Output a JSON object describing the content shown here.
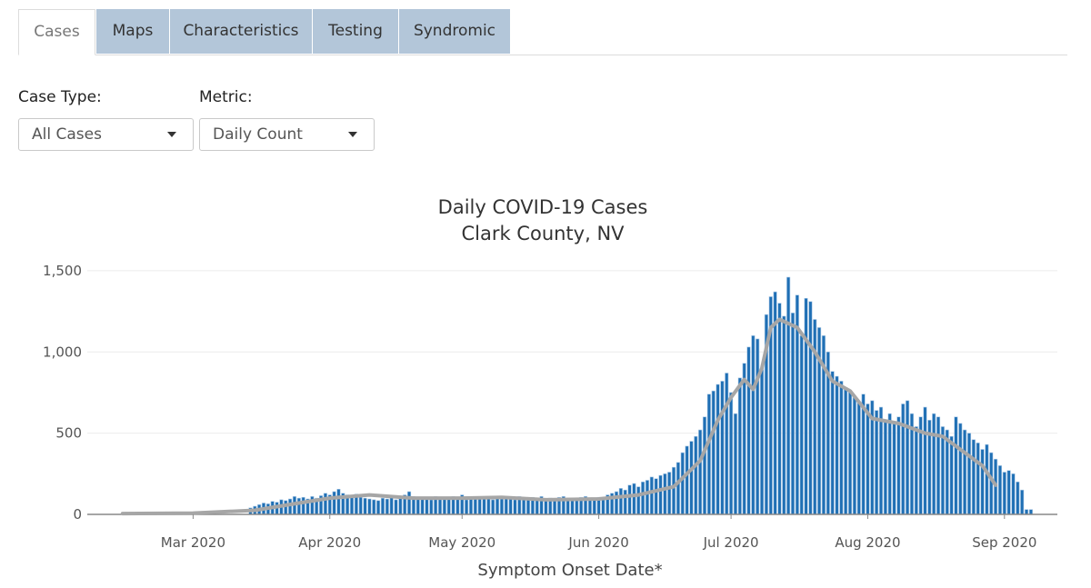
{
  "tabs": [
    {
      "label": "Cases",
      "active": true
    },
    {
      "label": "Maps",
      "active": false
    },
    {
      "label": "Characteristics",
      "active": false
    },
    {
      "label": "Testing",
      "active": false
    },
    {
      "label": "Syndromic",
      "active": false
    }
  ],
  "controls": {
    "case_type": {
      "label": "Case Type:",
      "value": "All Cases"
    },
    "metric": {
      "label": "Metric:",
      "value": "Daily Count"
    }
  },
  "colors": {
    "bar": "#1f6fb4",
    "bar_edge": "#a9c8e6",
    "moving_average": "#a6a6a6",
    "tab_inactive": "#b3c6d9"
  },
  "chart_data": {
    "type": "bar",
    "title": "Daily COVID-19 Cases",
    "subtitle": "Clark County, NV",
    "xlabel": "Symptom Onset Date*",
    "ylabel": "",
    "ylim": [
      0,
      1600
    ],
    "yticks": [
      0,
      500,
      1000,
      1500
    ],
    "ytick_labels": [
      "0",
      "500",
      "1,000",
      "1,500"
    ],
    "xticks": [
      "2020-03-01",
      "2020-04-01",
      "2020-05-01",
      "2020-06-01",
      "2020-07-01",
      "2020-08-01",
      "2020-09-01"
    ],
    "xtick_labels": [
      "Mar 2020",
      "Apr 2020",
      "May 2020",
      "Jun 2020",
      "Jul 2020",
      "Aug 2020",
      "Sep 2020"
    ],
    "xlim": [
      "2020-02-06",
      "2020-09-13"
    ],
    "grid": true,
    "series": [
      {
        "kind": "bar",
        "start_date": "2020-03-14",
        "values": [
          40,
          50,
          60,
          70,
          65,
          80,
          75,
          90,
          85,
          95,
          110,
          100,
          105,
          95,
          110,
          100,
          115,
          130,
          120,
          140,
          155,
          130,
          120,
          110,
          125,
          105,
          100,
          95,
          90,
          85,
          100,
          95,
          110,
          90,
          100,
          120,
          140,
          110,
          100,
          95,
          105,
          90,
          110,
          100,
          95,
          105,
          110,
          100,
          120,
          90,
          110,
          100,
          95,
          105,
          110,
          90,
          100,
          95,
          105,
          100,
          90,
          110,
          100,
          95,
          105,
          100,
          110,
          90,
          100,
          95,
          105,
          110,
          95,
          100,
          90,
          105,
          110,
          100,
          95,
          105,
          100,
          120,
          130,
          140,
          160,
          150,
          180,
          190,
          170,
          200,
          210,
          230,
          220,
          240,
          250,
          260,
          290,
          320,
          380,
          420,
          450,
          480,
          520,
          600,
          740,
          760,
          800,
          820,
          870,
          750,
          620,
          840,
          930,
          1030,
          1100,
          1080,
          900,
          1230,
          1340,
          1370,
          1300,
          1220,
          1460,
          1240,
          1350,
          1100,
          1330,
          1310,
          1200,
          1150,
          1100,
          1000,
          880,
          850,
          820,
          780,
          760,
          720,
          690,
          740,
          680,
          700,
          640,
          660,
          580,
          620,
          560,
          600,
          680,
          700,
          620,
          540,
          600,
          660,
          580,
          620,
          600,
          540,
          520,
          480,
          600,
          560,
          520,
          500,
          460,
          440,
          400,
          430,
          380,
          340,
          300,
          260,
          270,
          250,
          200,
          150,
          30,
          30
        ]
      },
      {
        "kind": "line",
        "name": "",
        "points": [
          [
            "2020-02-14",
            5
          ],
          [
            "2020-03-01",
            8
          ],
          [
            "2020-03-15",
            25
          ],
          [
            "2020-03-25",
            70
          ],
          [
            "2020-04-01",
            100
          ],
          [
            "2020-04-10",
            120
          ],
          [
            "2020-04-20",
            100
          ],
          [
            "2020-05-01",
            100
          ],
          [
            "2020-05-10",
            105
          ],
          [
            "2020-05-20",
            90
          ],
          [
            "2020-06-01",
            95
          ],
          [
            "2020-06-10",
            120
          ],
          [
            "2020-06-18",
            170
          ],
          [
            "2020-06-24",
            330
          ],
          [
            "2020-06-28",
            580
          ],
          [
            "2020-07-01",
            720
          ],
          [
            "2020-07-04",
            830
          ],
          [
            "2020-07-06",
            770
          ],
          [
            "2020-07-08",
            900
          ],
          [
            "2020-07-10",
            1150
          ],
          [
            "2020-07-12",
            1200
          ],
          [
            "2020-07-16",
            1150
          ],
          [
            "2020-07-20",
            1000
          ],
          [
            "2020-07-24",
            820
          ],
          [
            "2020-07-28",
            760
          ],
          [
            "2020-08-02",
            590
          ],
          [
            "2020-08-08",
            560
          ],
          [
            "2020-08-14",
            500
          ],
          [
            "2020-08-18",
            480
          ],
          [
            "2020-08-22",
            400
          ],
          [
            "2020-08-27",
            300
          ],
          [
            "2020-08-30",
            180
          ]
        ]
      }
    ]
  }
}
